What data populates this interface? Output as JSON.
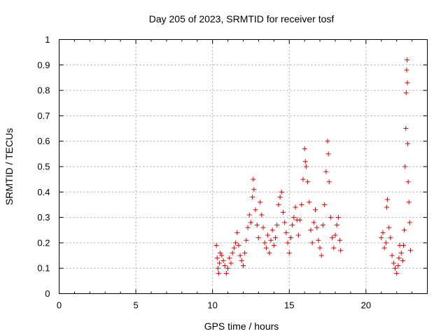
{
  "chart_data": {
    "type": "scatter",
    "title": "Day 205 of 2023, SRMTID for receiver tosf",
    "xlabel": "GPS time / hours",
    "ylabel": "SRMTID / TECUs",
    "xlim": [
      0,
      24
    ],
    "ylim": [
      0,
      1
    ],
    "x_ticks": [
      "0",
      "5",
      "10",
      "15",
      "20"
    ],
    "y_ticks": [
      "0",
      "0.1",
      "0.2",
      "0.3",
      "0.4",
      "0.5",
      "0.6",
      "0.7",
      "0.8",
      "0.9",
      "1"
    ],
    "grid": true,
    "marker": "plus",
    "color": "#e00000",
    "series": [
      {
        "name": "SRMTID",
        "points": [
          [
            10.25,
            0.19
          ],
          [
            10.3,
            0.14
          ],
          [
            10.35,
            0.1
          ],
          [
            10.4,
            0.08
          ],
          [
            10.45,
            0.12
          ],
          [
            10.5,
            0.16
          ],
          [
            10.6,
            0.15
          ],
          [
            10.7,
            0.13
          ],
          [
            10.8,
            0.11
          ],
          [
            10.9,
            0.08
          ],
          [
            11.0,
            0.1
          ],
          [
            11.1,
            0.14
          ],
          [
            11.2,
            0.12
          ],
          [
            11.3,
            0.16
          ],
          [
            11.4,
            0.18
          ],
          [
            11.5,
            0.2
          ],
          [
            11.6,
            0.24
          ],
          [
            11.7,
            0.19
          ],
          [
            11.8,
            0.15
          ],
          [
            11.9,
            0.13
          ],
          [
            12.0,
            0.11
          ],
          [
            12.1,
            0.16
          ],
          [
            12.2,
            0.21
          ],
          [
            12.3,
            0.26
          ],
          [
            12.4,
            0.31
          ],
          [
            12.5,
            0.28
          ],
          [
            12.6,
            0.38
          ],
          [
            12.65,
            0.45
          ],
          [
            12.7,
            0.41
          ],
          [
            12.8,
            0.33
          ],
          [
            12.9,
            0.27
          ],
          [
            13.0,
            0.22
          ],
          [
            13.1,
            0.36
          ],
          [
            13.2,
            0.31
          ],
          [
            13.3,
            0.26
          ],
          [
            13.4,
            0.2
          ],
          [
            13.5,
            0.18
          ],
          [
            13.6,
            0.23
          ],
          [
            13.7,
            0.16
          ],
          [
            13.8,
            0.21
          ],
          [
            13.9,
            0.25
          ],
          [
            14.0,
            0.19
          ],
          [
            14.1,
            0.22
          ],
          [
            14.2,
            0.27
          ],
          [
            14.3,
            0.35
          ],
          [
            14.4,
            0.38
          ],
          [
            14.5,
            0.4
          ],
          [
            14.6,
            0.32
          ],
          [
            14.7,
            0.28
          ],
          [
            14.8,
            0.24
          ],
          [
            14.9,
            0.2
          ],
          [
            15.0,
            0.16
          ],
          [
            15.1,
            0.22
          ],
          [
            15.2,
            0.27
          ],
          [
            15.3,
            0.3
          ],
          [
            15.4,
            0.34
          ],
          [
            15.5,
            0.29
          ],
          [
            15.6,
            0.23
          ],
          [
            15.7,
            0.29
          ],
          [
            15.8,
            0.35
          ],
          [
            15.9,
            0.45
          ],
          [
            16.0,
            0.57
          ],
          [
            16.05,
            0.52
          ],
          [
            16.1,
            0.5
          ],
          [
            16.2,
            0.44
          ],
          [
            16.3,
            0.36
          ],
          [
            16.4,
            0.25
          ],
          [
            16.5,
            0.2
          ],
          [
            16.6,
            0.28
          ],
          [
            16.7,
            0.33
          ],
          [
            16.8,
            0.26
          ],
          [
            16.9,
            0.21
          ],
          [
            17.0,
            0.18
          ],
          [
            17.1,
            0.15
          ],
          [
            17.2,
            0.27
          ],
          [
            17.3,
            0.35
          ],
          [
            17.4,
            0.48
          ],
          [
            17.5,
            0.6
          ],
          [
            17.55,
            0.55
          ],
          [
            17.6,
            0.44
          ],
          [
            17.7,
            0.3
          ],
          [
            17.8,
            0.22
          ],
          [
            17.9,
            0.18
          ],
          [
            18.0,
            0.23
          ],
          [
            18.1,
            0.27
          ],
          [
            18.2,
            0.3
          ],
          [
            18.3,
            0.21
          ],
          [
            18.35,
            0.17
          ],
          [
            21.0,
            0.22
          ],
          [
            21.1,
            0.24
          ],
          [
            21.2,
            0.18
          ],
          [
            21.3,
            0.2
          ],
          [
            21.35,
            0.34
          ],
          [
            21.4,
            0.37
          ],
          [
            21.5,
            0.26
          ],
          [
            21.6,
            0.22
          ],
          [
            21.7,
            0.15
          ],
          [
            21.8,
            0.12
          ],
          [
            21.9,
            0.1
          ],
          [
            22.0,
            0.08
          ],
          [
            22.1,
            0.11
          ],
          [
            22.15,
            0.14
          ],
          [
            22.2,
            0.19
          ],
          [
            22.3,
            0.16
          ],
          [
            22.4,
            0.13
          ],
          [
            22.45,
            0.19
          ],
          [
            22.5,
            0.25
          ],
          [
            22.55,
            0.5
          ],
          [
            22.6,
            0.65
          ],
          [
            22.62,
            0.79
          ],
          [
            22.65,
            0.88
          ],
          [
            22.68,
            0.92
          ],
          [
            22.7,
            0.83
          ],
          [
            22.72,
            0.59
          ],
          [
            22.75,
            0.44
          ],
          [
            22.8,
            0.36
          ],
          [
            22.85,
            0.28
          ],
          [
            22.9,
            0.17
          ]
        ]
      }
    ]
  }
}
